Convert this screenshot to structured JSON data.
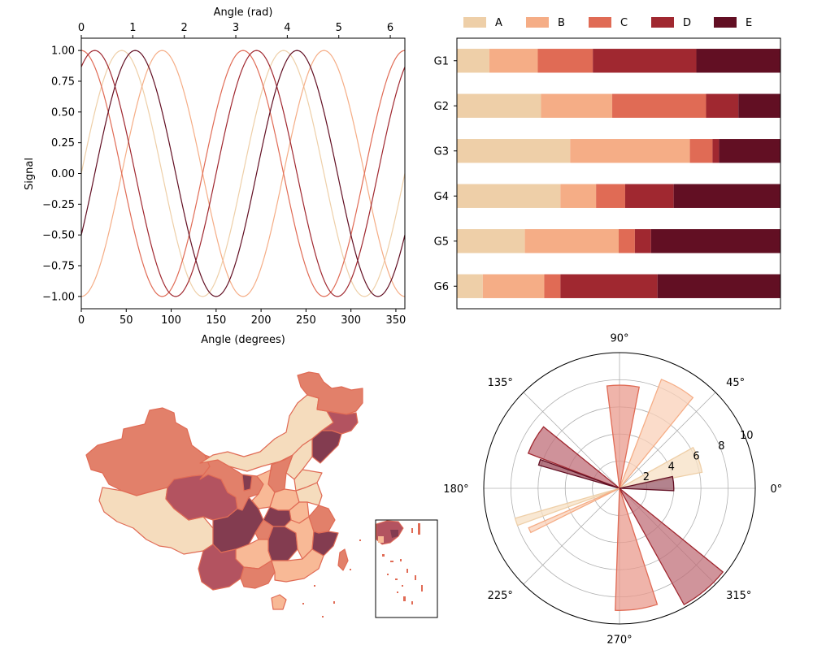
{
  "chart_data": [
    {
      "type": "line",
      "xlabel": "Angle (degrees)",
      "x2label": "Angle (rad)",
      "ylabel": "Signal",
      "xlim": [
        0,
        360
      ],
      "ylim": [
        -1.1,
        1.1
      ],
      "xticks": [
        "0",
        "50",
        "100",
        "150",
        "200",
        "250",
        "300",
        "350"
      ],
      "x2ticks": [
        "0",
        "1",
        "2",
        "3",
        "4",
        "5",
        "6"
      ],
      "yticks": [
        "−1.00",
        "−0.75",
        "−0.50",
        "−0.25",
        "0.00",
        "0.25",
        "0.50",
        "0.75",
        "1.00"
      ],
      "function": "sin(2*x + phase)",
      "series": [
        {
          "phase_deg": 0,
          "color": "#eecfa8"
        },
        {
          "phase_deg": -90,
          "color": "#f5ad86"
        },
        {
          "phase_deg": 90,
          "color": "#e06b55"
        },
        {
          "phase_deg": 60,
          "color": "#a02830"
        },
        {
          "phase_deg": -30,
          "color": "#620f23"
        }
      ]
    },
    {
      "type": "bar",
      "orientation": "horizontal",
      "stacked": true,
      "categories": [
        "G1",
        "G2",
        "G3",
        "G4",
        "G5",
        "G6"
      ],
      "legend": "top",
      "series": [
        {
          "name": "A",
          "color": "#eecfa8",
          "values": [
            0.1,
            0.26,
            0.35,
            0.32,
            0.21,
            0.08
          ]
        },
        {
          "name": "B",
          "color": "#f5ad86",
          "values": [
            0.15,
            0.22,
            0.37,
            0.11,
            0.29,
            0.19
          ]
        },
        {
          "name": "C",
          "color": "#e06b55",
          "values": [
            0.17,
            0.29,
            0.07,
            0.09,
            0.05,
            0.05
          ]
        },
        {
          "name": "D",
          "color": "#a02830",
          "values": [
            0.32,
            0.1,
            0.02,
            0.15,
            0.05,
            0.3
          ]
        },
        {
          "name": "E",
          "color": "#620f23",
          "values": [
            0.26,
            0.13,
            0.19,
            0.33,
            0.4,
            0.38
          ]
        }
      ]
    },
    {
      "type": "choropleth",
      "region": "China with South China Sea inset",
      "palette": [
        "#f5dcbd",
        "#f8b996",
        "#e2806a",
        "#b35360",
        "#833c50"
      ],
      "border_color": "#e06b55"
    },
    {
      "type": "polar_bar",
      "rlim": [
        0,
        10
      ],
      "rticks": [
        "2",
        "4",
        "6",
        "8",
        "10"
      ],
      "thetaticks": [
        "0°",
        "45°",
        "90°",
        "135°",
        "180°",
        "225°",
        "270°",
        "315°"
      ],
      "bars": [
        {
          "theta_deg": 20,
          "width_deg": 18,
          "r": 6.2,
          "fill": "#f7e0c4",
          "edge": "#eecfa8"
        },
        {
          "theta_deg": 60,
          "width_deg": 18,
          "r": 8.6,
          "fill": "#fad0b8",
          "edge": "#f5ad86"
        },
        {
          "theta_deg": 88,
          "width_deg": 18,
          "r": 7.6,
          "fill": "#e99b8e",
          "edge": "#e06b55"
        },
        {
          "theta_deg": 150,
          "width_deg": 18,
          "r": 7.2,
          "fill": "#bf6e78",
          "edge": "#a02830"
        },
        {
          "theta_deg": 162,
          "width_deg": 4,
          "r": 6.2,
          "fill": "#9a4a58",
          "edge": "#620f23"
        },
        {
          "theta_deg": 198,
          "width_deg": 4,
          "r": 8.0,
          "fill": "#f7e0c4",
          "edge": "#eecfa8"
        },
        {
          "theta_deg": 205,
          "width_deg": 3,
          "r": 7.3,
          "fill": "#fad0b8",
          "edge": "#f5ad86"
        },
        {
          "theta_deg": 278,
          "width_deg": 20,
          "r": 9.0,
          "fill": "#e99b8e",
          "edge": "#e06b55"
        },
        {
          "theta_deg": 310,
          "width_deg": 22,
          "r": 9.8,
          "fill": "#c0707a",
          "edge": "#a02830"
        },
        {
          "theta_deg": 5,
          "width_deg": 15,
          "r": 4.0,
          "fill": "#9a5a68",
          "edge": "#620f23"
        }
      ]
    }
  ]
}
